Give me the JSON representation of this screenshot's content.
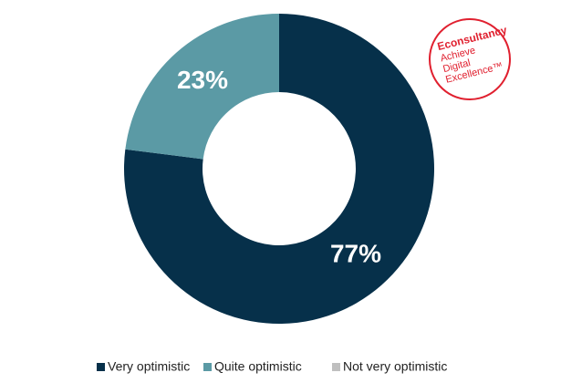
{
  "chart_data": {
    "type": "donut",
    "categories": [
      "Very optimistic",
      "Quite optimistic",
      "Not very optimistic"
    ],
    "values": [
      77,
      23,
      0
    ],
    "value_labels": [
      "77%",
      "23%",
      null
    ],
    "colors": [
      "#06304a",
      "#5b9aa5",
      "#bfbfbf"
    ]
  },
  "logo": {
    "name": "Econsultancy",
    "lines": [
      "Achieve",
      "Digital",
      "Excellence™"
    ]
  }
}
